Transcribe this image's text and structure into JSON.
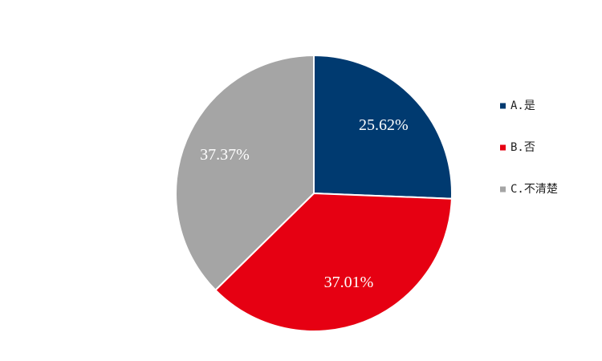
{
  "chart_data": {
    "type": "pie",
    "categories": [
      "A.是",
      "B.否",
      "C.不清楚"
    ],
    "values": [
      25.62,
      37.01,
      37.37
    ],
    "value_labels": [
      "25.62%",
      "37.01%",
      "37.37%"
    ],
    "colors": [
      "#003a70",
      "#e60012",
      "#a5a5a5"
    ],
    "legend": "right"
  }
}
